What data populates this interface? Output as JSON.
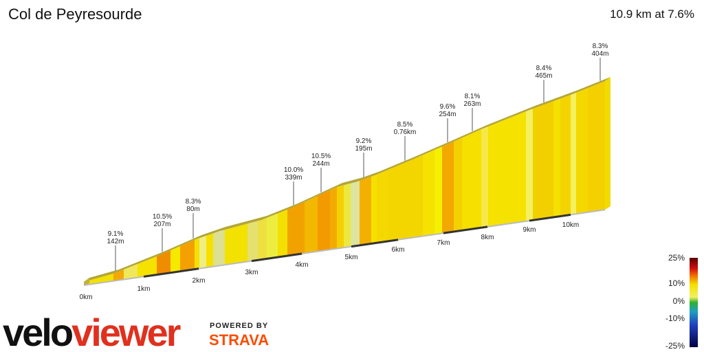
{
  "header": {
    "title": "Col de Peyresourde",
    "summary": "10.9 km at 7.6%"
  },
  "profile": {
    "annotations": [
      {
        "grade": "9.1%",
        "length": "142m"
      },
      {
        "grade": "10.5%",
        "length": "207m"
      },
      {
        "grade": "8.3%",
        "length": "80m"
      },
      {
        "grade": "10.0%",
        "length": "339m"
      },
      {
        "grade": "10.5%",
        "length": "244m"
      },
      {
        "grade": "9.2%",
        "length": "195m"
      },
      {
        "grade": "8.5%",
        "length": "0.76km"
      },
      {
        "grade": "9.6%",
        "length": "254m"
      },
      {
        "grade": "8.1%",
        "length": "263m"
      },
      {
        "grade": "8.4%",
        "length": "465m"
      },
      {
        "grade": "8.3%",
        "length": "404m"
      }
    ],
    "distance_labels": [
      "0km",
      "1km",
      "2km",
      "3km",
      "4km",
      "5km",
      "6km",
      "7km",
      "8km",
      "9km",
      "10km"
    ]
  },
  "legend": {
    "labels": [
      "25%",
      "10%",
      "0%",
      "-10%",
      "-25%"
    ]
  },
  "branding": {
    "logo_part1": "velo",
    "logo_part2": "viewer",
    "powered_by": "POWERED BY",
    "strava": "STRAVA"
  }
}
